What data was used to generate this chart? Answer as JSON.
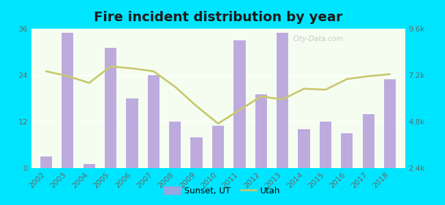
{
  "title": "Fire incident distribution by year",
  "years": [
    2002,
    2003,
    2004,
    2005,
    2006,
    2007,
    2008,
    2009,
    2010,
    2011,
    2012,
    2013,
    2014,
    2015,
    2016,
    2017,
    2018
  ],
  "bar_values": [
    3,
    35,
    1,
    31,
    18,
    24,
    12,
    8,
    11,
    33,
    19,
    35,
    10,
    12,
    9,
    14,
    23
  ],
  "line_values": [
    7400,
    7150,
    6800,
    7650,
    7550,
    7400,
    6600,
    5600,
    4700,
    5400,
    6100,
    5950,
    6500,
    6450,
    7000,
    7150,
    7250
  ],
  "bar_color": "#b39ddb",
  "bar_alpha": 0.85,
  "line_color": "#c8c870",
  "plot_bg_color": "#f5fdf0",
  "left_ylim": [
    0,
    36
  ],
  "left_yticks": [
    0,
    12,
    24,
    36
  ],
  "right_ylim": [
    2400,
    9600
  ],
  "right_yticks": [
    2400,
    4800,
    7200,
    9600
  ],
  "right_yticklabels": [
    "2.4k",
    "4.8k",
    "7.2k",
    "9.6k"
  ],
  "legend_bar_label": "Sunset, UT",
  "legend_line_label": "Utah",
  "figsize": [
    6.5,
    3.0
  ],
  "dpi": 100,
  "bg_color": "#00e5ff",
  "tick_color": "#666666",
  "title_fontsize": 14,
  "tick_fontsize": 8,
  "bar_width": 0.55
}
